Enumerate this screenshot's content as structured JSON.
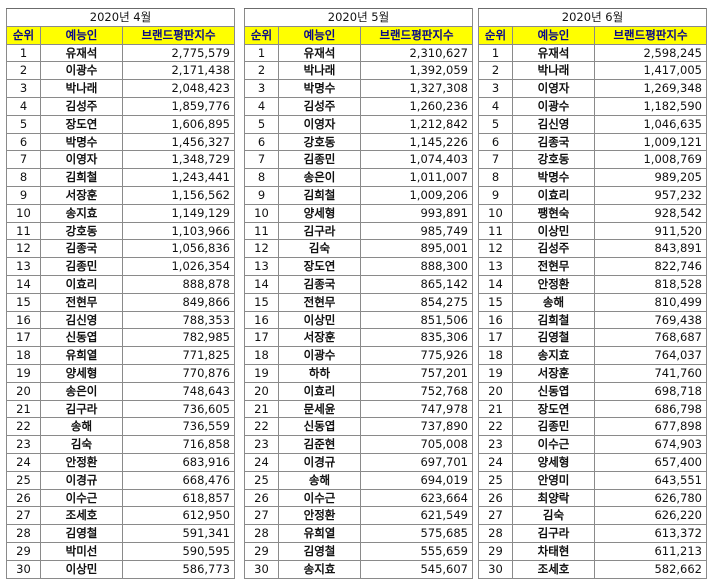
{
  "headers": {
    "rank": "순위",
    "name": "예능인",
    "score": "브랜드평판지수"
  },
  "colors": {
    "header_bg": "#ffff00",
    "header_text": "#0a0a8a"
  },
  "months": [
    {
      "title": "2020년 4월",
      "rows": [
        {
          "rank": "1",
          "name": "유재석",
          "score": "2,775,579"
        },
        {
          "rank": "2",
          "name": "이광수",
          "score": "2,171,438"
        },
        {
          "rank": "3",
          "name": "박나래",
          "score": "2,048,423"
        },
        {
          "rank": "4",
          "name": "김성주",
          "score": "1,859,776"
        },
        {
          "rank": "5",
          "name": "장도연",
          "score": "1,606,895"
        },
        {
          "rank": "6",
          "name": "박명수",
          "score": "1,456,327"
        },
        {
          "rank": "7",
          "name": "이영자",
          "score": "1,348,729"
        },
        {
          "rank": "8",
          "name": "김희철",
          "score": "1,243,441"
        },
        {
          "rank": "9",
          "name": "서장훈",
          "score": "1,156,562"
        },
        {
          "rank": "10",
          "name": "송지효",
          "score": "1,149,129"
        },
        {
          "rank": "11",
          "name": "강호동",
          "score": "1,103,966"
        },
        {
          "rank": "12",
          "name": "김종국",
          "score": "1,056,836"
        },
        {
          "rank": "13",
          "name": "김종민",
          "score": "1,026,354"
        },
        {
          "rank": "14",
          "name": "이효리",
          "score": "888,878"
        },
        {
          "rank": "15",
          "name": "전현무",
          "score": "849,866"
        },
        {
          "rank": "16",
          "name": "김신영",
          "score": "788,353"
        },
        {
          "rank": "17",
          "name": "신동엽",
          "score": "782,985"
        },
        {
          "rank": "18",
          "name": "유희열",
          "score": "771,825"
        },
        {
          "rank": "19",
          "name": "양세형",
          "score": "770,876"
        },
        {
          "rank": "20",
          "name": "송은이",
          "score": "748,643"
        },
        {
          "rank": "21",
          "name": "김구라",
          "score": "736,605"
        },
        {
          "rank": "22",
          "name": "송해",
          "score": "736,559"
        },
        {
          "rank": "23",
          "name": "김숙",
          "score": "716,858"
        },
        {
          "rank": "24",
          "name": "안정환",
          "score": "683,916"
        },
        {
          "rank": "25",
          "name": "이경규",
          "score": "668,476"
        },
        {
          "rank": "26",
          "name": "이수근",
          "score": "618,857"
        },
        {
          "rank": "27",
          "name": "조세호",
          "score": "612,950"
        },
        {
          "rank": "28",
          "name": "김영철",
          "score": "591,341"
        },
        {
          "rank": "29",
          "name": "박미선",
          "score": "590,595"
        },
        {
          "rank": "30",
          "name": "이상민",
          "score": "586,773"
        }
      ]
    },
    {
      "title": "2020년 5월",
      "rows": [
        {
          "rank": "1",
          "name": "유재석",
          "score": "2,310,627"
        },
        {
          "rank": "2",
          "name": "박나래",
          "score": "1,392,059"
        },
        {
          "rank": "3",
          "name": "박명수",
          "score": "1,327,308"
        },
        {
          "rank": "4",
          "name": "김성주",
          "score": "1,260,236"
        },
        {
          "rank": "5",
          "name": "이영자",
          "score": "1,212,842"
        },
        {
          "rank": "6",
          "name": "강호동",
          "score": "1,145,226"
        },
        {
          "rank": "7",
          "name": "김종민",
          "score": "1,074,403"
        },
        {
          "rank": "8",
          "name": "송은이",
          "score": "1,011,007"
        },
        {
          "rank": "9",
          "name": "김희철",
          "score": "1,009,206"
        },
        {
          "rank": "10",
          "name": "양세형",
          "score": "993,891"
        },
        {
          "rank": "11",
          "name": "김구라",
          "score": "985,749"
        },
        {
          "rank": "12",
          "name": "김숙",
          "score": "895,001"
        },
        {
          "rank": "13",
          "name": "장도연",
          "score": "888,300"
        },
        {
          "rank": "14",
          "name": "김종국",
          "score": "865,142"
        },
        {
          "rank": "15",
          "name": "전현무",
          "score": "854,275"
        },
        {
          "rank": "16",
          "name": "이상민",
          "score": "851,506"
        },
        {
          "rank": "17",
          "name": "서장훈",
          "score": "835,306"
        },
        {
          "rank": "18",
          "name": "이광수",
          "score": "775,926"
        },
        {
          "rank": "19",
          "name": "하하",
          "score": "757,201"
        },
        {
          "rank": "20",
          "name": "이효리",
          "score": "752,768"
        },
        {
          "rank": "21",
          "name": "문세윤",
          "score": "747,978"
        },
        {
          "rank": "22",
          "name": "신동엽",
          "score": "737,890"
        },
        {
          "rank": "23",
          "name": "김준현",
          "score": "705,008"
        },
        {
          "rank": "24",
          "name": "이경규",
          "score": "697,701"
        },
        {
          "rank": "25",
          "name": "송해",
          "score": "694,019"
        },
        {
          "rank": "26",
          "name": "이수근",
          "score": "623,664"
        },
        {
          "rank": "27",
          "name": "안정환",
          "score": "621,549"
        },
        {
          "rank": "28",
          "name": "유희열",
          "score": "575,685"
        },
        {
          "rank": "29",
          "name": "김영철",
          "score": "555,659"
        },
        {
          "rank": "30",
          "name": "송지효",
          "score": "545,607"
        }
      ]
    },
    {
      "title": "2020년 6월",
      "rows": [
        {
          "rank": "1",
          "name": "유재석",
          "score": "2,598,245"
        },
        {
          "rank": "2",
          "name": "박나래",
          "score": "1,417,005"
        },
        {
          "rank": "3",
          "name": "이영자",
          "score": "1,269,348"
        },
        {
          "rank": "4",
          "name": "이광수",
          "score": "1,182,590"
        },
        {
          "rank": "5",
          "name": "김신영",
          "score": "1,046,635"
        },
        {
          "rank": "6",
          "name": "김종국",
          "score": "1,009,121"
        },
        {
          "rank": "7",
          "name": "강호동",
          "score": "1,008,769"
        },
        {
          "rank": "8",
          "name": "박명수",
          "score": "989,205"
        },
        {
          "rank": "9",
          "name": "이효리",
          "score": "957,232"
        },
        {
          "rank": "10",
          "name": "팽현숙",
          "score": "928,542"
        },
        {
          "rank": "11",
          "name": "이상민",
          "score": "911,520"
        },
        {
          "rank": "12",
          "name": "김성주",
          "score": "843,891"
        },
        {
          "rank": "13",
          "name": "전현무",
          "score": "822,746"
        },
        {
          "rank": "14",
          "name": "안정환",
          "score": "818,528"
        },
        {
          "rank": "15",
          "name": "송해",
          "score": "810,499"
        },
        {
          "rank": "16",
          "name": "김희철",
          "score": "769,438"
        },
        {
          "rank": "17",
          "name": "김영철",
          "score": "768,687"
        },
        {
          "rank": "18",
          "name": "송지효",
          "score": "764,037"
        },
        {
          "rank": "19",
          "name": "서장훈",
          "score": "741,760"
        },
        {
          "rank": "20",
          "name": "신동엽",
          "score": "698,718"
        },
        {
          "rank": "21",
          "name": "장도연",
          "score": "686,798"
        },
        {
          "rank": "22",
          "name": "김종민",
          "score": "677,898"
        },
        {
          "rank": "23",
          "name": "이수근",
          "score": "674,903"
        },
        {
          "rank": "24",
          "name": "양세형",
          "score": "657,400"
        },
        {
          "rank": "25",
          "name": "안영미",
          "score": "643,551"
        },
        {
          "rank": "26",
          "name": "최양락",
          "score": "626,780"
        },
        {
          "rank": "27",
          "name": "김숙",
          "score": "626,220"
        },
        {
          "rank": "28",
          "name": "김구라",
          "score": "613,372"
        },
        {
          "rank": "29",
          "name": "차태현",
          "score": "611,213"
        },
        {
          "rank": "30",
          "name": "조세호",
          "score": "582,662"
        }
      ]
    }
  ]
}
